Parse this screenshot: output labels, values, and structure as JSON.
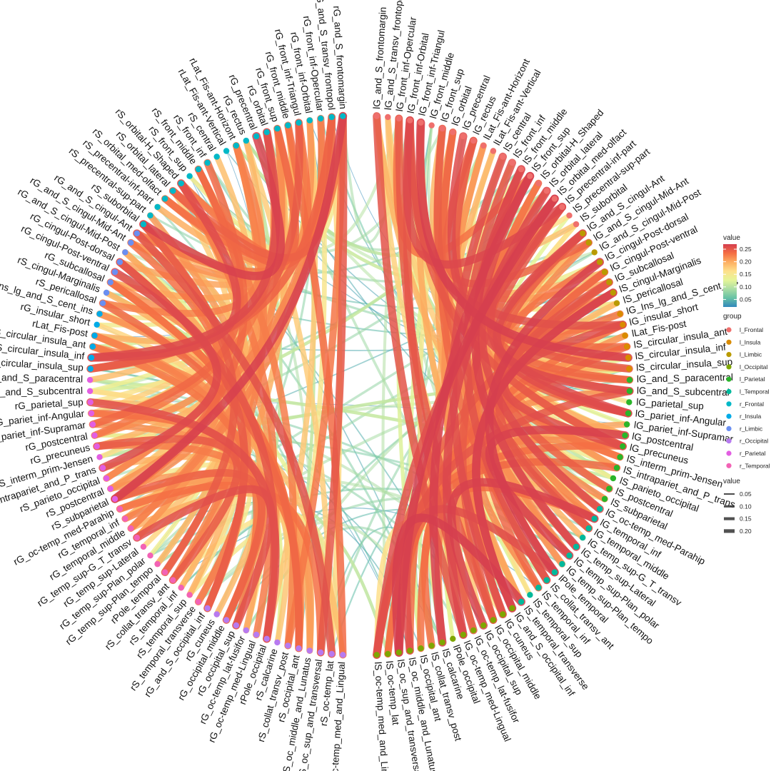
{
  "chart_data": {
    "type": "chord",
    "groups": {
      "l_Frontal": "#ef6f6c",
      "l_Insula": "#d98b00",
      "l_Limbic": "#b99a00",
      "l_Occipital": "#7fa600",
      "l_Parietal": "#2ab52a",
      "l_Temporal": "#00b99c",
      "r_Frontal": "#00b8c7",
      "r_Insula": "#00abe7",
      "r_Limbic": "#6a8ff2",
      "r_Occipital": "#b77af0",
      "r_Parietal": "#e25ee2",
      "r_Temporal": "#f262b5"
    },
    "nodes": [
      {
        "name": "lG_and_S_frontomargin",
        "group": "l_Frontal"
      },
      {
        "name": "lG_and_S_transv_frontopol",
        "group": "l_Frontal"
      },
      {
        "name": "lG_front_inf-Opercular",
        "group": "l_Frontal"
      },
      {
        "name": "lG_front_inf-Orbital",
        "group": "l_Frontal"
      },
      {
        "name": "lG_front_inf-Triangul",
        "group": "l_Frontal"
      },
      {
        "name": "lG_front_middle",
        "group": "l_Frontal"
      },
      {
        "name": "lG_front_sup",
        "group": "l_Frontal"
      },
      {
        "name": "lG_orbital",
        "group": "l_Frontal"
      },
      {
        "name": "lG_precentral",
        "group": "l_Frontal"
      },
      {
        "name": "lG_rectus",
        "group": "l_Frontal"
      },
      {
        "name": "lLat_Fis-ant-Horizont",
        "group": "l_Frontal"
      },
      {
        "name": "lLat_Fis-ant-Vertical",
        "group": "l_Frontal"
      },
      {
        "name": "lS_central",
        "group": "l_Frontal"
      },
      {
        "name": "lS_front_inf",
        "group": "l_Frontal"
      },
      {
        "name": "lS_front_middle",
        "group": "l_Frontal"
      },
      {
        "name": "lS_front_sup",
        "group": "l_Frontal"
      },
      {
        "name": "lS_orbital-H_Shaped",
        "group": "l_Frontal"
      },
      {
        "name": "lS_orbital_lateral",
        "group": "l_Frontal"
      },
      {
        "name": "lS_orbital_med-olfact",
        "group": "l_Frontal"
      },
      {
        "name": "lS_precentral-inf-part",
        "group": "l_Frontal"
      },
      {
        "name": "lS_precentral-sup-part",
        "group": "l_Frontal"
      },
      {
        "name": "lS_suborbital",
        "group": "l_Frontal"
      },
      {
        "name": "lG_and_S_cingul-Ant",
        "group": "l_Limbic"
      },
      {
        "name": "lG_and_S_cingul-Mid-Ant",
        "group": "l_Limbic"
      },
      {
        "name": "lG_and_S_cingul-Mid-Post",
        "group": "l_Limbic"
      },
      {
        "name": "lG_cingul-Post-dorsal",
        "group": "l_Limbic"
      },
      {
        "name": "lG_cingul-Post-ventral",
        "group": "l_Limbic"
      },
      {
        "name": "lG_subcallosal",
        "group": "l_Limbic"
      },
      {
        "name": "lS_cingul-Marginalis",
        "group": "l_Limbic"
      },
      {
        "name": "lS_pericallosal",
        "group": "l_Limbic"
      },
      {
        "name": "lG_Ins_lg_and_S_cent_ins",
        "group": "l_Insula"
      },
      {
        "name": "lG_insular_short",
        "group": "l_Insula"
      },
      {
        "name": "lLat_Fis-post",
        "group": "l_Insula"
      },
      {
        "name": "lS_circular_insula_ant",
        "group": "l_Insula"
      },
      {
        "name": "lS_circular_insula_inf",
        "group": "l_Insula"
      },
      {
        "name": "lS_circular_insula_sup",
        "group": "l_Insula"
      },
      {
        "name": "lG_and_S_paracentral",
        "group": "l_Parietal"
      },
      {
        "name": "lG_and_S_subcentral",
        "group": "l_Parietal"
      },
      {
        "name": "lG_parietal_sup",
        "group": "l_Parietal"
      },
      {
        "name": "lG_pariet_inf-Angular",
        "group": "l_Parietal"
      },
      {
        "name": "lG_pariet_inf-Supramar",
        "group": "l_Parietal"
      },
      {
        "name": "lG_postcentral",
        "group": "l_Parietal"
      },
      {
        "name": "lG_precuneus",
        "group": "l_Parietal"
      },
      {
        "name": "lS_interm_prim-Jensen",
        "group": "l_Parietal"
      },
      {
        "name": "lS_intrapariet_and_P_trans",
        "group": "l_Parietal"
      },
      {
        "name": "lS_parieto_occipital",
        "group": "l_Parietal"
      },
      {
        "name": "lS_postcentral",
        "group": "l_Parietal"
      },
      {
        "name": "lS_subparietal",
        "group": "l_Parietal"
      },
      {
        "name": "lG_oc-temp_med-Parahip",
        "group": "l_Temporal"
      },
      {
        "name": "lG_temporal_inf",
        "group": "l_Temporal"
      },
      {
        "name": "lG_temporal_middle",
        "group": "l_Temporal"
      },
      {
        "name": "lG_temp_sup-G_T_transv",
        "group": "l_Temporal"
      },
      {
        "name": "lG_temp_sup-Lateral",
        "group": "l_Temporal"
      },
      {
        "name": "lG_temp_sup-Plan_polar",
        "group": "l_Temporal"
      },
      {
        "name": "lG_temp_sup-Plan_tempo",
        "group": "l_Temporal"
      },
      {
        "name": "lPole_temporal",
        "group": "l_Temporal"
      },
      {
        "name": "lS_collat_transv_ant",
        "group": "l_Temporal"
      },
      {
        "name": "lS_temporal_inf",
        "group": "l_Temporal"
      },
      {
        "name": "lS_temporal_sup",
        "group": "l_Temporal"
      },
      {
        "name": "lS_temporal_transverse",
        "group": "l_Temporal"
      },
      {
        "name": "lG_and_S_occipital_inf",
        "group": "l_Occipital"
      },
      {
        "name": "lG_cuneus",
        "group": "l_Occipital"
      },
      {
        "name": "lG_occipital_middle",
        "group": "l_Occipital"
      },
      {
        "name": "lG_occipital_sup",
        "group": "l_Occipital"
      },
      {
        "name": "lG_oc-temp_lat-fusifor",
        "group": "l_Occipital"
      },
      {
        "name": "lG_oc-temp_med-Lingual",
        "group": "l_Occipital"
      },
      {
        "name": "lPole_occipital",
        "group": "l_Occipital"
      },
      {
        "name": "lS_calcarine",
        "group": "l_Occipital"
      },
      {
        "name": "lS_collat_transv_post",
        "group": "l_Occipital"
      },
      {
        "name": "lS_occipital_ant",
        "group": "l_Occipital"
      },
      {
        "name": "lS_oc_middle_and_Lunatus",
        "group": "l_Occipital"
      },
      {
        "name": "lS_oc_sup_and_transversal",
        "group": "l_Occipital"
      },
      {
        "name": "lS_oc-temp_lat",
        "group": "l_Occipital"
      },
      {
        "name": "lS_oc-temp_med_and_Lingual",
        "group": "l_Occipital"
      },
      {
        "name": "rS_oc-temp_med_and_Lingual",
        "group": "r_Occipital"
      },
      {
        "name": "rS_oc-temp_lat",
        "group": "r_Occipital"
      },
      {
        "name": "rS_oc_sup_and_transversal",
        "group": "r_Occipital"
      },
      {
        "name": "rS_oc_middle_and_Lunatus",
        "group": "r_Occipital"
      },
      {
        "name": "rS_occipital_ant",
        "group": "r_Occipital"
      },
      {
        "name": "rS_collat_transv_post",
        "group": "r_Occipital"
      },
      {
        "name": "rS_calcarine",
        "group": "r_Occipital"
      },
      {
        "name": "rPole_occipital",
        "group": "r_Occipital"
      },
      {
        "name": "rG_oc-temp_med-Lingual",
        "group": "r_Occipital"
      },
      {
        "name": "rG_oc-temp_lat-fusifor",
        "group": "r_Occipital"
      },
      {
        "name": "rG_occipital_sup",
        "group": "r_Occipital"
      },
      {
        "name": "rG_occipital_middle",
        "group": "r_Occipital"
      },
      {
        "name": "rG_cuneus",
        "group": "r_Occipital"
      },
      {
        "name": "rG_and_S_occipital_inf",
        "group": "r_Occipital"
      },
      {
        "name": "rS_temporal_transverse",
        "group": "r_Temporal"
      },
      {
        "name": "rS_temporal_sup",
        "group": "r_Temporal"
      },
      {
        "name": "rS_temporal_inf",
        "group": "r_Temporal"
      },
      {
        "name": "rS_collat_transv_ant",
        "group": "r_Temporal"
      },
      {
        "name": "rPole_temporal",
        "group": "r_Temporal"
      },
      {
        "name": "rG_temp_sup-Plan_tempo",
        "group": "r_Temporal"
      },
      {
        "name": "rG_temp_sup-Plan_polar",
        "group": "r_Temporal"
      },
      {
        "name": "rG_temp_sup-Lateral",
        "group": "r_Temporal"
      },
      {
        "name": "rG_temp_sup-G_T_transv",
        "group": "r_Temporal"
      },
      {
        "name": "rG_temporal_middle",
        "group": "r_Temporal"
      },
      {
        "name": "rG_temporal_inf",
        "group": "r_Temporal"
      },
      {
        "name": "rG_oc-temp_med-Parahip",
        "group": "r_Temporal"
      },
      {
        "name": "rS_subparietal",
        "group": "r_Parietal"
      },
      {
        "name": "rS_postcentral",
        "group": "r_Parietal"
      },
      {
        "name": "rS_parieto_occipital",
        "group": "r_Parietal"
      },
      {
        "name": "rS_intrapariet_and_P_trans",
        "group": "r_Parietal"
      },
      {
        "name": "rS_interm_prim-Jensen",
        "group": "r_Parietal"
      },
      {
        "name": "rG_precuneus",
        "group": "r_Parietal"
      },
      {
        "name": "rG_postcentral",
        "group": "r_Parietal"
      },
      {
        "name": "rG_pariet_inf-Supramar",
        "group": "r_Parietal"
      },
      {
        "name": "rG_pariet_inf-Angular",
        "group": "r_Parietal"
      },
      {
        "name": "rG_parietal_sup",
        "group": "r_Parietal"
      },
      {
        "name": "rG_and_S_subcentral",
        "group": "r_Parietal"
      },
      {
        "name": "rG_and_S_paracentral",
        "group": "r_Parietal"
      },
      {
        "name": "rS_circular_insula_sup",
        "group": "r_Insula"
      },
      {
        "name": "rS_circular_insula_inf",
        "group": "r_Insula"
      },
      {
        "name": "rS_circular_insula_ant",
        "group": "r_Insula"
      },
      {
        "name": "rLat_Fis-post",
        "group": "r_Insula"
      },
      {
        "name": "rG_insular_short",
        "group": "r_Insula"
      },
      {
        "name": "rG_Ins_lg_and_S_cent_ins",
        "group": "r_Insula"
      },
      {
        "name": "rS_pericallosal",
        "group": "r_Limbic"
      },
      {
        "name": "rS_cingul-Marginalis",
        "group": "r_Limbic"
      },
      {
        "name": "rG_subcallosal",
        "group": "r_Limbic"
      },
      {
        "name": "rG_cingul-Post-ventral",
        "group": "r_Limbic"
      },
      {
        "name": "rG_cingul-Post-dorsal",
        "group": "r_Limbic"
      },
      {
        "name": "rG_and_S_cingul-Mid-Post",
        "group": "r_Limbic"
      },
      {
        "name": "rG_and_S_cingul-Mid-Ant",
        "group": "r_Limbic"
      },
      {
        "name": "rG_and_S_cingul-Ant",
        "group": "r_Limbic"
      },
      {
        "name": "rS_suborbital",
        "group": "r_Frontal"
      },
      {
        "name": "rS_precentral-sup-part",
        "group": "r_Frontal"
      },
      {
        "name": "rS_precentral-inf-part",
        "group": "r_Frontal"
      },
      {
        "name": "rS_orbital_med-olfact",
        "group": "r_Frontal"
      },
      {
        "name": "rS_orbital_lateral",
        "group": "r_Frontal"
      },
      {
        "name": "rS_orbital-H_Shaped",
        "group": "r_Frontal"
      },
      {
        "name": "rS_front_sup",
        "group": "r_Frontal"
      },
      {
        "name": "rS_front_middle",
        "group": "r_Frontal"
      },
      {
        "name": "rS_front_inf",
        "group": "r_Frontal"
      },
      {
        "name": "rS_central",
        "group": "r_Frontal"
      },
      {
        "name": "rLat_Fis-ant-Vertical",
        "group": "r_Frontal"
      },
      {
        "name": "rLat_Fis-ant-Horizont",
        "group": "r_Frontal"
      },
      {
        "name": "rG_rectus",
        "group": "r_Frontal"
      },
      {
        "name": "rG_precentral",
        "group": "r_Frontal"
      },
      {
        "name": "rG_orbital",
        "group": "r_Frontal"
      },
      {
        "name": "rG_front_sup",
        "group": "r_Frontal"
      },
      {
        "name": "rG_front_middle",
        "group": "r_Frontal"
      },
      {
        "name": "rG_front_inf-Triangul",
        "group": "r_Frontal"
      },
      {
        "name": "rG_front_inf-Orbital",
        "group": "r_Frontal"
      },
      {
        "name": "rG_front_inf-Opercular",
        "group": "r_Frontal"
      },
      {
        "name": "rG_and_S_transv_frontopol",
        "group": "r_Frontal"
      },
      {
        "name": "rG_and_S_frontomargin",
        "group": "r_Frontal"
      }
    ],
    "edge_value_range": [
      0.02,
      0.27
    ],
    "legends": {
      "color": {
        "title": "value",
        "ticks": [
          "0.25",
          "0.20",
          "0.15",
          "0.10",
          "0.05"
        ],
        "tick_values": [
          0.25,
          0.2,
          0.15,
          0.1,
          0.05
        ],
        "range": [
          0.02,
          0.27
        ],
        "stops": [
          "#d53e4f",
          "#f46d43",
          "#fdae61",
          "#fee08b",
          "#e6f598",
          "#abdda4",
          "#66c2a5",
          "#3288bd"
        ]
      },
      "group": {
        "title": "group",
        "entries": [
          "l_Frontal",
          "l_Insula",
          "l_Limbic",
          "l_Occipital",
          "l_Parietal",
          "l_Temporal",
          "r_Frontal",
          "r_Insula",
          "r_Limbic",
          "r_Occipital",
          "r_Parietal",
          "r_Temporal"
        ]
      },
      "width": {
        "title": "value",
        "entries": [
          "0.05",
          "0.10",
          "0.15",
          "0.20"
        ],
        "values": [
          0.05,
          0.1,
          0.15,
          0.2
        ]
      }
    }
  }
}
